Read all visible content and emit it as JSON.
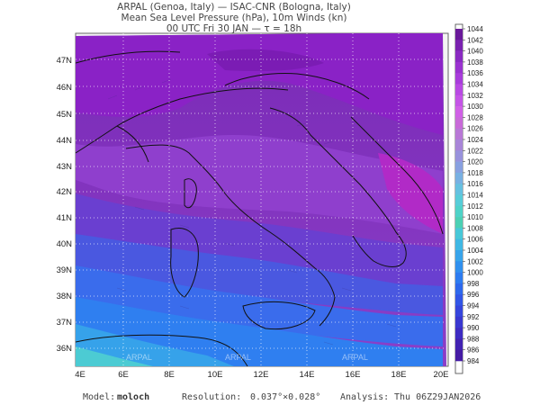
{
  "header": {
    "line1": "ARPAL (Genoa, Italy)  —  ISAC-CNR (Bologna, Italy)",
    "line2": "Mean Sea Level Pressure (hPa), 10m Winds (kn)",
    "line3": "00 UTC Fri 30 JAN  —  τ = 18h"
  },
  "map": {
    "lat_labels": [
      "47N",
      "46N",
      "45N",
      "44N",
      "43N",
      "42N",
      "41N",
      "40N",
      "39N",
      "38N",
      "37N",
      "36N"
    ],
    "lon_labels": [
      "4E",
      "6E",
      "8E",
      "10E",
      "12E",
      "14E",
      "16E",
      "18E",
      "20E"
    ],
    "watermark": "ARPAL"
  },
  "colorbar": {
    "levels": [
      "1044",
      "1042",
      "1040",
      "1038",
      "1036",
      "1034",
      "1032",
      "1030",
      "1028",
      "1026",
      "1024",
      "1022",
      "1020",
      "1018",
      "1016",
      "1014",
      "1012",
      "1010",
      "1008",
      "1006",
      "1004",
      "1002",
      "1000",
      "998",
      "996",
      "994",
      "992",
      "990",
      "988",
      "986",
      "984"
    ],
    "colors": [
      "#6a1a9a",
      "#7a22b0",
      "#8a2bc2",
      "#9a33d0",
      "#a83ddb",
      "#b84ae3",
      "#c455e6",
      "#d060e6",
      "#c86ad8",
      "#b878d6",
      "#a885d8",
      "#9892dc",
      "#88a0e0",
      "#78b0e2",
      "#66c0e0",
      "#58ccd8",
      "#4fd2c8",
      "#4cd0b4",
      "#48c8d8",
      "#40b8e4",
      "#38a4ea",
      "#3190ee",
      "#2e7cf0",
      "#2e68ec",
      "#3256e6",
      "#3646dc",
      "#3a38d0",
      "#3e2cc2",
      "#4222b2",
      "#461ca4"
    ]
  },
  "footer": {
    "model_label": "Model:",
    "model_value": "moloch",
    "resolution_label": "Resolution:",
    "resolution_value": "0.037°×0.028°",
    "analysis_label": "Analysis:",
    "analysis_value": "Thu 06Z29JAN2026"
  }
}
